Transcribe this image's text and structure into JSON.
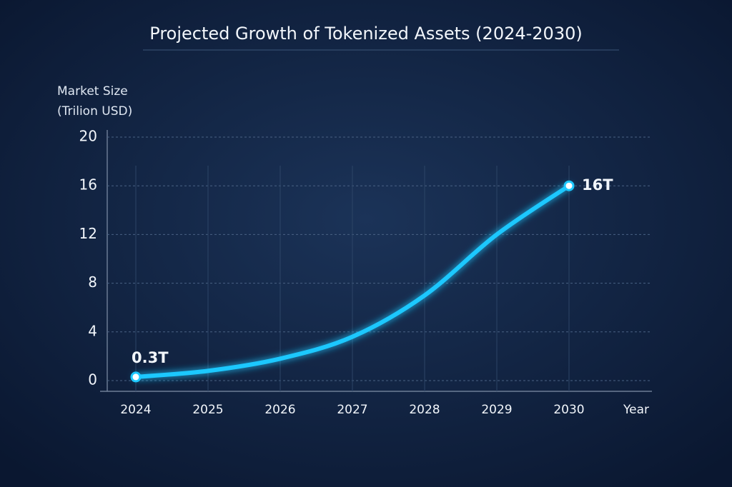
{
  "chart_data": {
    "type": "line",
    "title": "Projected Growth of Tokenized Assets (2024-2030)",
    "y_label": [
      "Market Size",
      "(Trilion USD)"
    ],
    "x_label": "Year",
    "categories": [
      "2024",
      "2025",
      "2026",
      "2027",
      "2028",
      "2029",
      "2030"
    ],
    "values": [
      0.3,
      0.8,
      1.8,
      3.6,
      7,
      12,
      16
    ],
    "value_labels": [
      "0.3T",
      null,
      null,
      null,
      null,
      null,
      "16T"
    ],
    "color": "#1ec8ff",
    "ylim": [
      0,
      20
    ],
    "yticks": [
      0,
      4,
      8,
      12,
      16,
      20
    ],
    "grid": true
  }
}
